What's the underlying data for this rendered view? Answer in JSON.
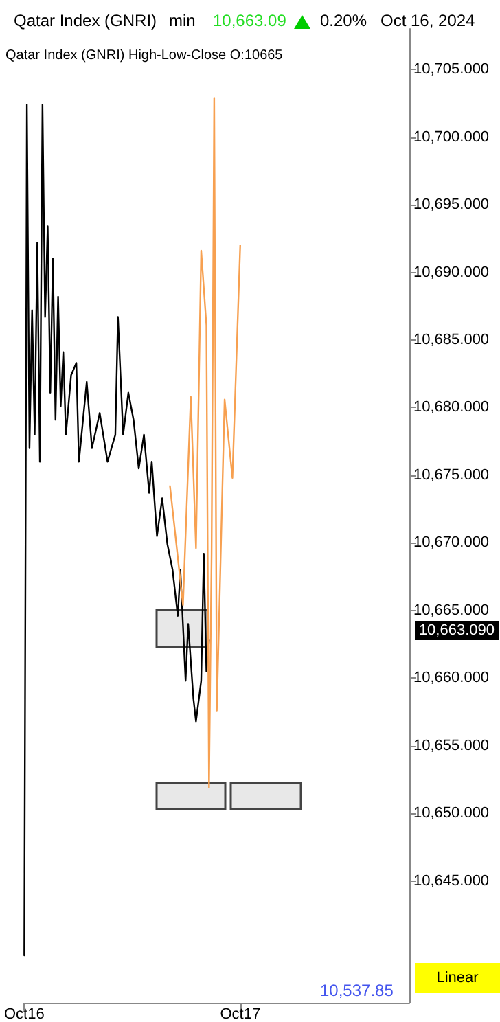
{
  "chart_data": {
    "type": "line",
    "title": "Qatar Index  (GNRI)",
    "subtitle": "Qatar Index (GNRI)  High-Low-Close     O:10665",
    "annotations": [
      "min",
      "10,663.09",
      "0.20%",
      "Oct 16, 2024",
      "10,663.090",
      "10,537.85",
      "Linear"
    ],
    "categories": [
      "Oct16",
      null,
      null,
      null,
      null,
      null,
      null,
      null,
      null,
      null,
      null,
      null,
      null,
      null,
      null,
      null,
      null,
      null,
      null,
      null,
      null,
      null,
      null,
      null,
      null,
      null,
      null,
      null,
      null,
      null,
      null,
      null,
      null,
      null,
      null,
      null,
      null,
      null,
      null,
      null,
      null,
      null,
      null,
      null,
      null,
      null,
      null,
      null,
      null,
      null,
      null,
      null,
      null,
      null,
      null,
      null,
      null,
      null,
      null,
      null,
      null,
      null,
      null,
      null,
      null,
      null,
      null,
      null,
      null,
      null,
      null,
      null,
      null,
      null,
      null,
      null,
      null,
      null,
      null,
      null,
      null,
      null,
      null,
      "Oct17",
      null,
      null,
      null,
      null,
      null,
      null,
      null,
      null,
      null,
      null,
      null,
      null,
      null,
      null,
      null,
      null,
      null,
      null,
      null,
      null,
      null,
      null,
      null,
      null,
      null,
      null,
      null,
      null,
      null,
      null,
      null,
      null,
      null,
      null,
      null,
      null,
      null,
      null,
      null,
      null,
      null,
      null,
      null,
      null,
      null,
      null,
      null,
      null,
      null,
      null,
      null,
      null,
      null,
      null,
      null,
      null,
      null,
      null,
      null,
      null,
      null,
      null,
      null,
      null,
      null
    ],
    "ylim": [
      10636,
      10708
    ],
    "yticks": [
      {
        "value": 10645,
        "label": "10,645.000"
      },
      {
        "value": 10650,
        "label": "10,650.000"
      },
      {
        "value": 10655,
        "label": "10,655.000"
      },
      {
        "value": 10660,
        "label": "10,660.000"
      },
      {
        "value": 10665,
        "label": "10,665.000"
      },
      {
        "value": 10670,
        "label": "10,670.000"
      },
      {
        "value": 10675,
        "label": "10,675.000"
      },
      {
        "value": 10680,
        "label": "10,680.000"
      },
      {
        "value": 10685,
        "label": "10,685.000"
      },
      {
        "value": 10690,
        "label": "10,690.000"
      },
      {
        "value": 10695,
        "label": "10,695.000"
      },
      {
        "value": 10700,
        "label": "10,700.000"
      },
      {
        "value": 10705,
        "label": "10,705.000"
      }
    ],
    "grid": false,
    "marker": "none",
    "line_style": "solid",
    "series": [
      {
        "color": "#000000",
        "values": [
          10639.5,
          10702.4,
          10677.0,
          10687.2,
          10678.0,
          10692.2,
          10676.0,
          10702.4,
          10686.7,
          10693.4,
          10681.1,
          10691.0,
          10679.1,
          10688.2,
          10680.1,
          10684.1,
          10678.0,
          null,
          10682.4,
          null,
          10683.3,
          10676.0,
          null,
          null,
          10681.9,
          null,
          10677.0,
          null,
          null,
          10679.6,
          null,
          null,
          10676.0,
          null,
          null,
          10678.0,
          10686.7,
          null,
          10678.0,
          null,
          10681.1,
          null,
          10679.1,
          null,
          10675.5,
          null,
          10678.0,
          null,
          10673.7,
          10676.0,
          null,
          10670.5,
          null,
          10673.3,
          null,
          10669.9,
          null,
          10668.0,
          null,
          10664.6,
          10668.0,
          null,
          10659.8,
          10664.0,
          null,
          10658.5,
          10656.8,
          null,
          10659.8,
          10669.2,
          10660.5,
          10662.8,
          null,
          null,
          null,
          null,
          null,
          null,
          null,
          null,
          null,
          null,
          null,
          null,
          null,
          null,
          null,
          null,
          null,
          null,
          null,
          null,
          null,
          null,
          null,
          null,
          null,
          null,
          null,
          null,
          null,
          null,
          null,
          null,
          null,
          null,
          null,
          null,
          null,
          null,
          null,
          null,
          null,
          null,
          null,
          null,
          null,
          null,
          null,
          null,
          null,
          null,
          null,
          null,
          null,
          null,
          null,
          null,
          null,
          null,
          null,
          null,
          null,
          null,
          null,
          null,
          null,
          null,
          null,
          null,
          null,
          null,
          null,
          null,
          null,
          null,
          null,
          null,
          null
        ]
      },
      {
        "color": "#f7a050",
        "values": [
          null,
          null,
          null,
          null,
          null,
          null,
          null,
          null,
          null,
          null,
          null,
          null,
          null,
          null,
          null,
          null,
          null,
          null,
          null,
          null,
          null,
          null,
          null,
          null,
          null,
          null,
          null,
          null,
          null,
          null,
          null,
          null,
          null,
          null,
          null,
          null,
          null,
          null,
          null,
          null,
          null,
          null,
          null,
          null,
          null,
          null,
          null,
          null,
          null,
          null,
          null,
          null,
          null,
          null,
          null,
          null,
          10674.2,
          null,
          10670.7,
          null,
          null,
          10665.4,
          null,
          null,
          10680.8,
          null,
          10669.6,
          null,
          10691.6,
          null,
          10686.1,
          10651.9,
          10669.2,
          10702.9,
          10657.6,
          null,
          null,
          10680.6,
          null,
          null,
          10674.8,
          null,
          null,
          10692.0,
          null,
          null,
          null,
          null,
          null,
          null,
          null,
          null,
          null,
          null,
          null,
          null,
          null,
          null,
          null,
          null,
          null,
          null,
          null,
          null,
          null,
          null,
          null,
          null,
          null,
          null,
          null,
          null,
          null,
          null,
          null,
          null,
          null,
          null,
          null,
          null,
          null,
          null,
          null,
          null,
          null,
          null,
          null,
          null,
          null,
          null,
          null,
          null,
          null,
          null,
          null,
          null,
          null,
          null,
          null,
          null,
          null,
          null,
          null,
          null,
          null,
          null,
          null,
          null,
          null
        ]
      }
    ]
  }
}
